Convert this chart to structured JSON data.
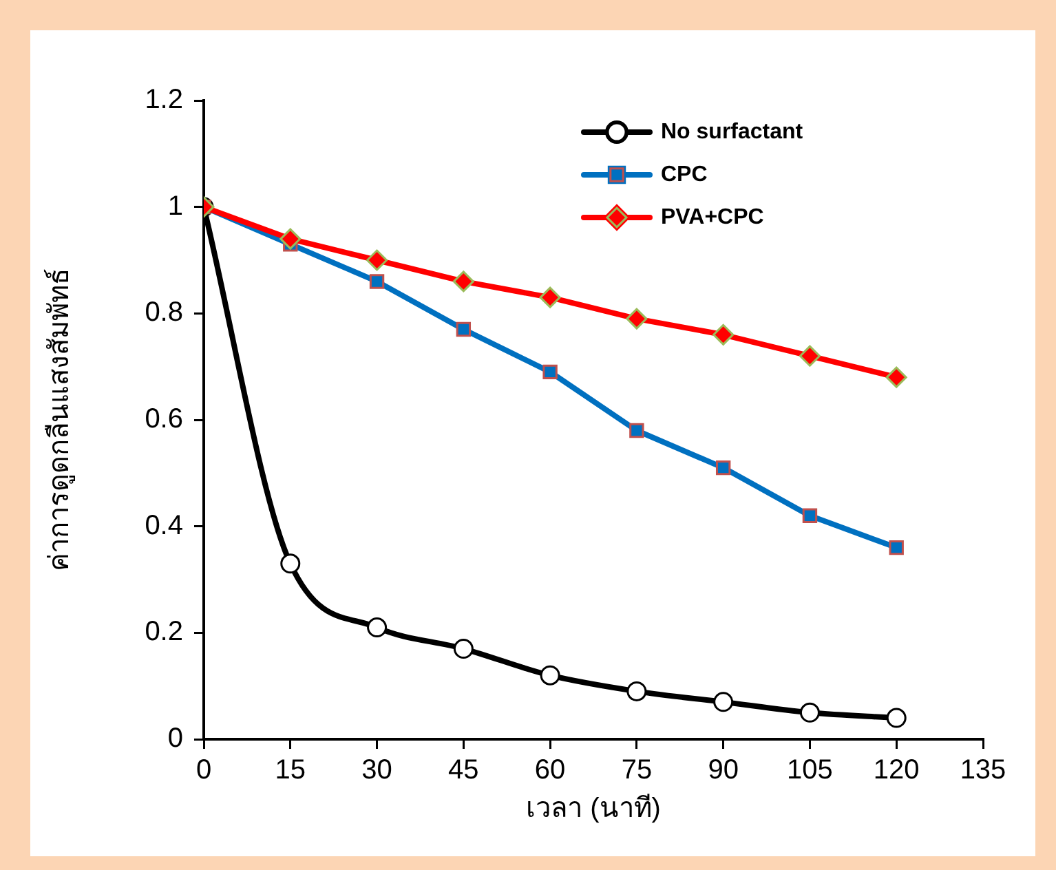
{
  "chart_data": {
    "type": "line",
    "xlabel": "เวลา (นาที)",
    "ylabel": "ค่าการดูดกลืนแสงสัมพัทธ์",
    "x": [
      0,
      15,
      30,
      45,
      60,
      75,
      90,
      105,
      120
    ],
    "xlim": [
      0,
      135
    ],
    "xticks": [
      0,
      15,
      30,
      45,
      60,
      75,
      90,
      105,
      120,
      135
    ],
    "ylim": [
      0,
      1.2
    ],
    "yticks": [
      0,
      0.2,
      0.4,
      0.6,
      0.8,
      1,
      1.2
    ],
    "grid": false,
    "legend": "top right",
    "line_style": "solid",
    "series": [
      {
        "name": "No surfactant",
        "color": "#000000",
        "marker": "circle",
        "values": [
          1,
          0.33,
          0.21,
          0.17,
          0.12,
          0.09,
          0.07,
          0.05,
          0.04
        ]
      },
      {
        "name": "CPC",
        "color": "#0070c0",
        "marker": "square",
        "values": [
          1,
          0.93,
          0.86,
          0.77,
          0.69,
          0.58,
          0.51,
          0.42,
          0.36
        ]
      },
      {
        "name": "PVA+CPC",
        "color": "#ff0000",
        "marker": "diamond",
        "values": [
          1,
          0.94,
          0.9,
          0.86,
          0.83,
          0.79,
          0.76,
          0.72,
          0.68
        ]
      }
    ]
  }
}
